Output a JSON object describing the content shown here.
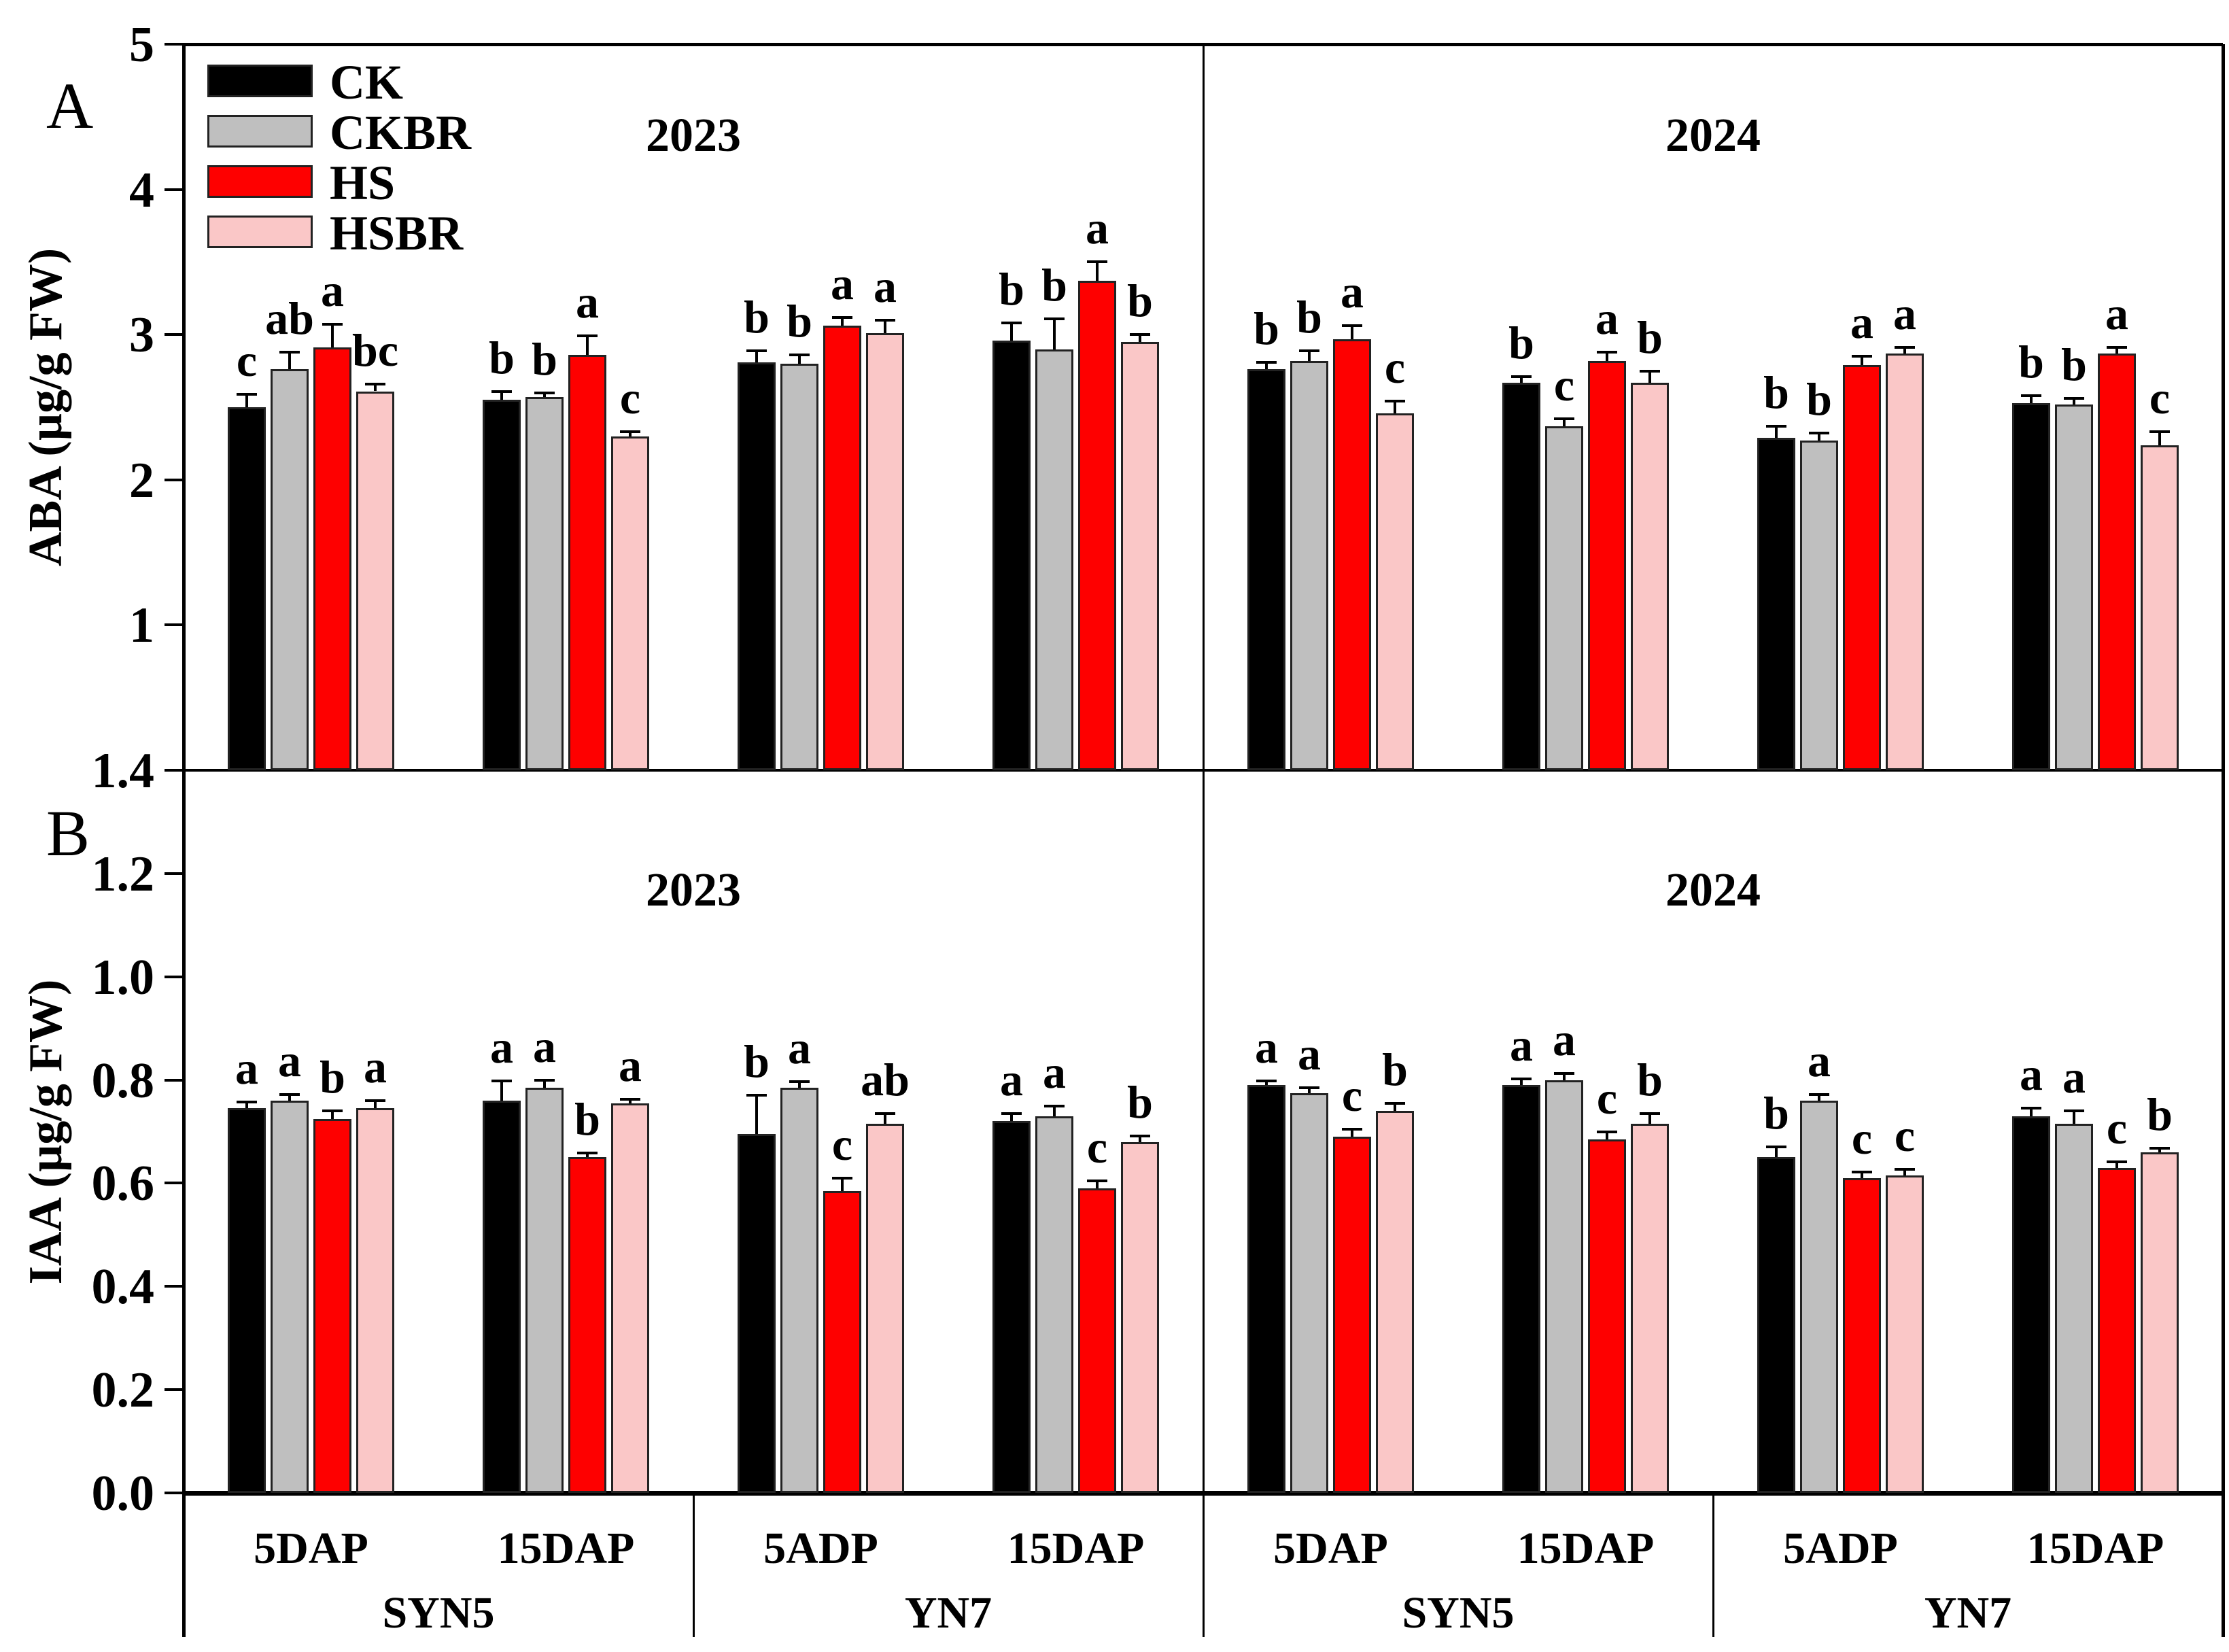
{
  "figure_title": "Hormone content bar chart, panels A (ABA) and B (IAA), years 2023 and 2024",
  "panel_labels": [
    "A",
    "B"
  ],
  "legend": {
    "items": [
      {
        "label": "CK",
        "color": "#000000"
      },
      {
        "label": "CKBR",
        "color": "#bfbfbf"
      },
      {
        "label": "HS",
        "color": "#fe0000"
      },
      {
        "label": "HSBR",
        "color": "#fac7c7"
      }
    ]
  },
  "x_axis": {
    "years": [
      {
        "title": "2023",
        "cultivars": [
          {
            "name": "SYN5",
            "timepoints": [
              "5DAP",
              "15DAP"
            ]
          },
          {
            "name": "YN7",
            "timepoints": [
              "5ADP",
              "15DAP"
            ]
          }
        ]
      },
      {
        "title": "2024",
        "cultivars": [
          {
            "name": "SYN5",
            "timepoints": [
              "5DAP",
              "15DAP"
            ]
          },
          {
            "name": "YN7",
            "timepoints": [
              "5ADP",
              "15DAP"
            ]
          }
        ]
      }
    ]
  },
  "chart_data": [
    {
      "type": "bar",
      "panel": "A",
      "ylabel": "ABA (µg/g FW)",
      "ylim": [
        0,
        5
      ],
      "ytick_labels": [
        "5",
        "4",
        "3",
        "2",
        "1"
      ],
      "ytick_values": [
        5,
        4,
        3,
        2,
        1
      ],
      "year_titles": [
        "2023",
        "2024"
      ],
      "series": [
        "CK",
        "CKBR",
        "HS",
        "HSBR"
      ],
      "legend_visible": true,
      "groups": [
        {
          "year": "2023",
          "cultivar": "SYN5",
          "timepoint": "5DAP",
          "values": [
            2.5,
            2.76,
            2.91,
            2.61
          ],
          "errors": [
            0.09,
            0.12,
            0.16,
            0.05
          ],
          "letters": [
            "c",
            "ab",
            "a",
            "bc"
          ]
        },
        {
          "year": "2023",
          "cultivar": "SYN5",
          "timepoint": "15DAP",
          "values": [
            2.55,
            2.57,
            2.86,
            2.3
          ],
          "errors": [
            0.06,
            0.03,
            0.13,
            0.03
          ],
          "letters": [
            "b",
            "b",
            "a",
            "c"
          ]
        },
        {
          "year": "2023",
          "cultivar": "YN7",
          "timepoint": "5ADP",
          "values": [
            2.81,
            2.8,
            3.06,
            3.01
          ],
          "errors": [
            0.08,
            0.06,
            0.06,
            0.09
          ],
          "letters": [
            "b",
            "b",
            "a",
            "a"
          ]
        },
        {
          "year": "2023",
          "cultivar": "YN7",
          "timepoint": "15DAP",
          "values": [
            2.96,
            2.9,
            3.37,
            2.95
          ],
          "errors": [
            0.12,
            0.21,
            0.13,
            0.05
          ],
          "letters": [
            "b",
            "b",
            "a",
            "b"
          ]
        },
        {
          "year": "2024",
          "cultivar": "SYN5",
          "timepoint": "5DAP",
          "values": [
            2.76,
            2.82,
            2.97,
            2.46
          ],
          "errors": [
            0.05,
            0.07,
            0.09,
            0.08
          ],
          "letters": [
            "b",
            "b",
            "a",
            "c"
          ]
        },
        {
          "year": "2024",
          "cultivar": "SYN5",
          "timepoint": "15DAP",
          "values": [
            2.67,
            2.37,
            2.82,
            2.67
          ],
          "errors": [
            0.04,
            0.05,
            0.06,
            0.08
          ],
          "letters": [
            "b",
            "c",
            "a",
            "b"
          ]
        },
        {
          "year": "2024",
          "cultivar": "YN7",
          "timepoint": "5ADP",
          "values": [
            2.29,
            2.27,
            2.79,
            2.87
          ],
          "errors": [
            0.08,
            0.05,
            0.06,
            0.04
          ],
          "letters": [
            "b",
            "b",
            "a",
            "a"
          ]
        },
        {
          "year": "2024",
          "cultivar": "YN7",
          "timepoint": "15DAP",
          "values": [
            2.53,
            2.52,
            2.87,
            2.24
          ],
          "errors": [
            0.05,
            0.04,
            0.04,
            0.09
          ],
          "letters": [
            "b",
            "b",
            "a",
            "c"
          ]
        }
      ]
    },
    {
      "type": "bar",
      "panel": "B",
      "ylabel": "IAA (µg/g FW)",
      "ylim": [
        0,
        1.4
      ],
      "ytick_labels": [
        "1.4",
        "1.2",
        "1.0",
        "0.8",
        "0.6",
        "0.4",
        "0.2",
        "0.0"
      ],
      "ytick_values": [
        1.4,
        1.2,
        1.0,
        0.8,
        0.6,
        0.4,
        0.2,
        0.0
      ],
      "year_titles": [
        "2023",
        "2024"
      ],
      "series": [
        "CK",
        "CKBR",
        "HS",
        "HSBR"
      ],
      "legend_visible": false,
      "groups": [
        {
          "year": "2023",
          "cultivar": "SYN5",
          "timepoint": "5DAP",
          "values": [
            0.745,
            0.76,
            0.725,
            0.745
          ],
          "errors": [
            0.012,
            0.012,
            0.015,
            0.015
          ],
          "letters": [
            "a",
            "a",
            "b",
            "a"
          ]
        },
        {
          "year": "2023",
          "cultivar": "SYN5",
          "timepoint": "15DAP",
          "values": [
            0.76,
            0.785,
            0.65,
            0.755
          ],
          "errors": [
            0.038,
            0.015,
            0.008,
            0.008
          ],
          "letters": [
            "a",
            "a",
            "b",
            "a"
          ]
        },
        {
          "year": "2023",
          "cultivar": "YN7",
          "timepoint": "5ADP",
          "values": [
            0.695,
            0.785,
            0.585,
            0.715
          ],
          "errors": [
            0.075,
            0.012,
            0.025,
            0.02
          ],
          "letters": [
            "b",
            "a",
            "c",
            "ab"
          ]
        },
        {
          "year": "2023",
          "cultivar": "YN7",
          "timepoint": "15DAP",
          "values": [
            0.72,
            0.73,
            0.59,
            0.68
          ],
          "errors": [
            0.015,
            0.02,
            0.015,
            0.012
          ],
          "letters": [
            "a",
            "a",
            "c",
            "b"
          ]
        },
        {
          "year": "2024",
          "cultivar": "SYN5",
          "timepoint": "5DAP",
          "values": [
            0.79,
            0.775,
            0.69,
            0.74
          ],
          "errors": [
            0.008,
            0.01,
            0.015,
            0.015
          ],
          "letters": [
            "a",
            "a",
            "c",
            "b"
          ]
        },
        {
          "year": "2024",
          "cultivar": "SYN5",
          "timepoint": "15DAP",
          "values": [
            0.79,
            0.8,
            0.685,
            0.715
          ],
          "errors": [
            0.012,
            0.012,
            0.015,
            0.02
          ],
          "letters": [
            "a",
            "a",
            "c",
            "b"
          ]
        },
        {
          "year": "2024",
          "cultivar": "YN7",
          "timepoint": "5ADP",
          "values": [
            0.65,
            0.76,
            0.61,
            0.615
          ],
          "errors": [
            0.02,
            0.012,
            0.012,
            0.012
          ],
          "letters": [
            "b",
            "a",
            "c",
            "c"
          ]
        },
        {
          "year": "2024",
          "cultivar": "YN7",
          "timepoint": "15DAP",
          "values": [
            0.73,
            0.715,
            0.63,
            0.66
          ],
          "errors": [
            0.015,
            0.025,
            0.012,
            0.008
          ],
          "letters": [
            "a",
            "a",
            "c",
            "b"
          ]
        }
      ]
    }
  ],
  "colors": {
    "axis": "#000000",
    "bar_border": "#222222",
    "background": "#ffffff"
  }
}
